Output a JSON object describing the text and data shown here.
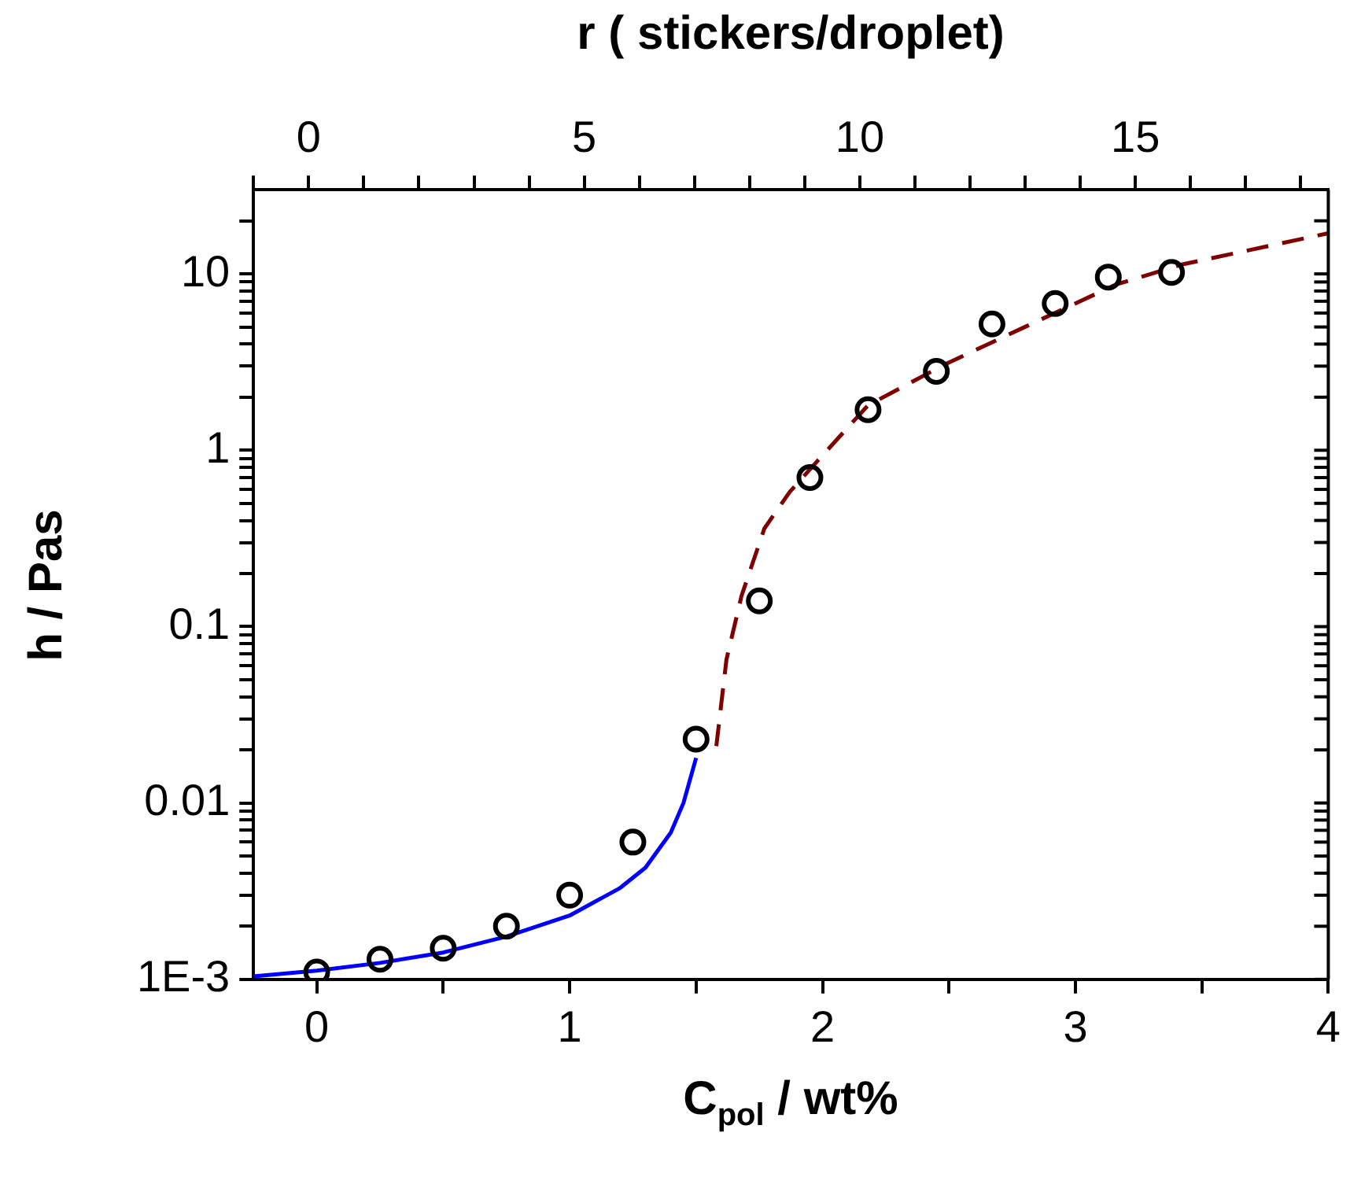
{
  "chart_data": {
    "type": "scatter",
    "xlabel": "C$_{pol}$ / wt%",
    "ylabel": "h / Pas",
    "x2label": "r ( stickers/droplet)",
    "xlim": [
      -0.25,
      4
    ],
    "xticks": [
      0,
      {
        "value": 0.5,
        "label": null
      },
      1,
      {
        "value": 1.5,
        "label": null
      },
      2,
      {
        "value": 2.5,
        "label": null
      },
      3,
      {
        "value": 3.5,
        "label": null
      },
      4
    ],
    "x2lim": [
      -1,
      18.5
    ],
    "x2ticks": [
      {
        "value": -1,
        "label": null
      },
      0,
      {
        "value": 1,
        "label": null
      },
      {
        "value": 2,
        "label": null
      },
      {
        "value": 3,
        "label": null
      },
      {
        "value": 4,
        "label": null
      },
      5,
      {
        "value": 6,
        "label": null
      },
      {
        "value": 7,
        "label": null
      },
      {
        "value": 8,
        "label": null
      },
      {
        "value": 9,
        "label": null
      },
      10,
      {
        "value": 11,
        "label": null
      },
      {
        "value": 12,
        "label": null
      },
      {
        "value": 13,
        "label": null
      },
      {
        "value": 14,
        "label": null
      },
      15,
      {
        "value": 16,
        "label": null
      },
      {
        "value": 17,
        "label": null
      },
      {
        "value": 18,
        "label": null
      }
    ],
    "ylim": [
      0.001,
      30
    ],
    "log": "y",
    "yticks": [
      {
        "value": 0.001,
        "label": "1E-3"
      },
      {
        "value": 0.002,
        "label": null
      },
      {
        "value": 0.003,
        "label": null
      },
      {
        "value": 0.004,
        "label": null
      },
      {
        "value": 0.005,
        "label": null
      },
      {
        "value": 0.006,
        "label": null
      },
      {
        "value": 0.007,
        "label": null
      },
      {
        "value": 0.008,
        "label": null
      },
      {
        "value": 0.009,
        "label": null
      },
      0.01,
      {
        "value": 0.02,
        "label": null
      },
      {
        "value": 0.03,
        "label": null
      },
      {
        "value": 0.04,
        "label": null
      },
      {
        "value": 0.05,
        "label": null
      },
      {
        "value": 0.06,
        "label": null
      },
      {
        "value": 0.07,
        "label": null
      },
      {
        "value": 0.08,
        "label": null
      },
      {
        "value": 0.09,
        "label": null
      },
      0.1,
      {
        "value": 0.2,
        "label": null
      },
      {
        "value": 0.3,
        "label": null
      },
      {
        "value": 0.4,
        "label": null
      },
      {
        "value": 0.5,
        "label": null
      },
      {
        "value": 0.6,
        "label": null
      },
      {
        "value": 0.7,
        "label": null
      },
      {
        "value": 0.8,
        "label": null
      },
      {
        "value": 0.9,
        "label": null
      },
      1,
      {
        "value": 2,
        "label": null
      },
      {
        "value": 3,
        "label": null
      },
      {
        "value": 4,
        "label": null
      },
      {
        "value": 5,
        "label": null
      },
      {
        "value": 6,
        "label": null
      },
      {
        "value": 7,
        "label": null
      },
      {
        "value": 8,
        "label": null
      },
      {
        "value": 9,
        "label": null
      },
      10,
      {
        "value": 20,
        "label": null
      }
    ],
    "grid": false,
    "legend": false,
    "series": [
      {
        "type": "scatter",
        "color": "#000000",
        "marker": "circle",
        "x": [
          0,
          0.25,
          0.5,
          0.75,
          1,
          1.25,
          1.5,
          1.75,
          1.95,
          2.18,
          2.45,
          2.67,
          2.92,
          3.13,
          3.38
        ],
        "values": [
          0.0011,
          0.0013,
          0.0015,
          0.002,
          0.003,
          0.006,
          0.023,
          0.14,
          0.7,
          1.7,
          2.8,
          5.2,
          6.8,
          9.6,
          10.2
        ]
      },
      {
        "type": "line",
        "color": "#0000ff",
        "marker": "none",
        "line_style": "solid",
        "x": [
          -0.25,
          0,
          0.25,
          0.5,
          0.75,
          1,
          1.2,
          1.3,
          1.4,
          1.45,
          1.5
        ],
        "values": [
          0.00104,
          0.00112,
          0.00124,
          0.00142,
          0.00175,
          0.0023,
          0.0033,
          0.0043,
          0.0068,
          0.01,
          0.018
        ]
      },
      {
        "type": "line",
        "color": "#800000",
        "marker": "none",
        "line_style": "dashed",
        "x": [
          1.58,
          1.62,
          1.68,
          1.77,
          1.87,
          1.98,
          2.18,
          2.49,
          2.8,
          3.16,
          3.42,
          4
        ],
        "values": [
          0.021,
          0.065,
          0.15,
          0.36,
          0.58,
          0.87,
          1.8,
          3.1,
          5,
          8.7,
          11.3,
          17
        ]
      }
    ]
  }
}
